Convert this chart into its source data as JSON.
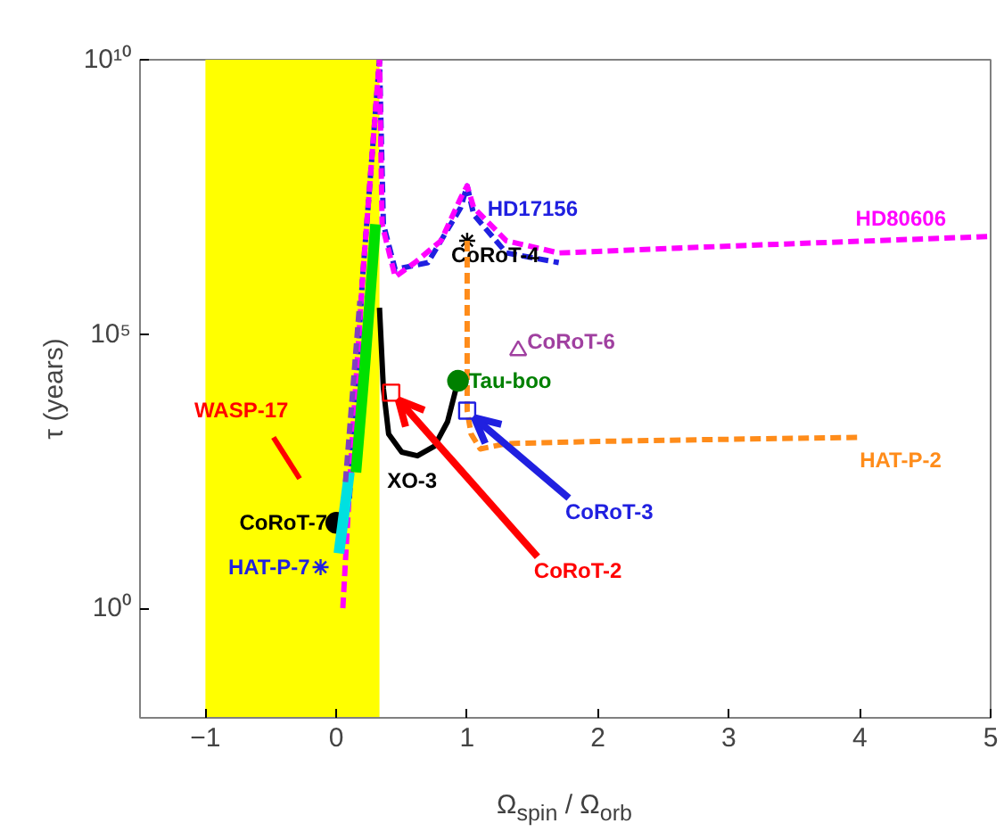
{
  "chart_data": {
    "type": "line",
    "xlabel": "Ω$_{spin}$ / Ω$_{orb}$",
    "ylabel": "τ (years)",
    "log": "y",
    "xlim": [
      -1.5,
      5
    ],
    "ylim": [
      0.01,
      10000000000
    ],
    "xticks": [
      {
        "value": -1,
        "label": "−1"
      },
      0,
      1,
      2,
      3,
      4,
      5
    ],
    "yticks": [
      {
        "value": 1,
        "label": "10⁰"
      },
      {
        "value": 100000,
        "label": "10⁵"
      },
      {
        "value": 10000000000,
        "label": "10¹⁰"
      }
    ],
    "grid": false,
    "bands": [
      {
        "axis": "x",
        "from": -1,
        "to": 0.33,
        "color": "#ffff00"
      }
    ],
    "series": [
      {
        "name": "HD17156",
        "color": "#2020e0",
        "line_style": "dashed",
        "x": [
          0.1,
          0.2,
          0.33,
          0.36,
          0.45,
          0.7,
          0.95,
          1.0,
          1.05,
          1.3,
          1.7
        ],
        "values": [
          100,
          1000000,
          10000000000,
          10000000,
          1500000,
          2000000,
          20000000,
          50000000,
          15000000,
          3000000,
          2000000
        ]
      },
      {
        "name": "HD80606",
        "color": "#ff00ff",
        "line_style": "dashed",
        "x": [
          0.05,
          0.12,
          0.2,
          0.33,
          0.35,
          0.45,
          0.6,
          0.8,
          0.95,
          1.0,
          1.05,
          1.3,
          1.7,
          3,
          5
        ],
        "values": [
          1,
          1000,
          1000000,
          10000000000,
          10000000,
          1100000,
          2000000,
          5000000,
          30000000,
          50000000,
          20000000,
          5000000,
          3000000,
          4000000,
          6000000
        ]
      },
      {
        "name": "CoRoT-4",
        "type": "scatter",
        "color": "#000000",
        "marker": "cross",
        "x": [
          1.0
        ],
        "values": [
          5000000
        ]
      },
      {
        "name": "HAT-P-2",
        "color": "#ff8c1a",
        "line_style": "dashed",
        "x": [
          1.0,
          1.0,
          1.0,
          1.03,
          1.1,
          1.3,
          2,
          3,
          4
        ],
        "values": [
          5000000,
          30000,
          4000,
          1500,
          800,
          1000,
          1100,
          1200,
          1300
        ]
      },
      {
        "name": "CoRoT-6",
        "type": "scatter",
        "color": "#a040a0",
        "marker": "triangle",
        "x": [
          1.39
        ],
        "values": [
          50000
        ]
      },
      {
        "name": "XO-3",
        "color": "#000000",
        "line_style": "solid",
        "x": [
          0.33,
          0.36,
          0.4,
          0.5,
          0.62,
          0.75,
          0.85,
          0.93
        ],
        "values": [
          300000,
          10000,
          1500,
          700,
          600,
          900,
          2500,
          14000
        ]
      },
      {
        "name": "Tau-boo",
        "type": "scatter",
        "color": "#008000",
        "marker": "circle",
        "x": [
          0.93
        ],
        "values": [
          14000
        ]
      },
      {
        "name": "CoRoT-3",
        "type": "scatter",
        "color": "#2020e0",
        "marker": "square",
        "x": [
          1.0
        ],
        "values": [
          4000
        ]
      },
      {
        "name": "CoRoT-2",
        "type": "scatter",
        "color": "#ff0000",
        "marker": "square",
        "x": [
          0.42
        ],
        "values": [
          8500
        ]
      },
      {
        "name": "WASP-17",
        "color": "#ff0000",
        "line_style": "solid",
        "x": [
          -0.48,
          -0.28
        ],
        "values": [
          1300,
          230
        ]
      },
      {
        "name": "CoRoT-7",
        "type": "scatter",
        "color": "#000000",
        "marker": "circle",
        "x": [
          0.0
        ],
        "values": [
          36
        ]
      },
      {
        "name": "HAT-P-7",
        "type": "scatter",
        "color": "#2020e0",
        "marker": "cross",
        "x": [
          -0.12
        ],
        "values": [
          5.6
        ]
      },
      {
        "color": "#00e000",
        "line_style": "solid",
        "x": [
          0.15,
          0.22,
          0.3
        ],
        "values": [
          300,
          30000,
          10000000
        ]
      },
      {
        "color": "#00e0e0",
        "line_style": "solid",
        "x": [
          0.02,
          0.1
        ],
        "values": [
          10,
          300
        ]
      },
      {
        "color": "#8040c0",
        "line_style": "dashed",
        "x": [
          0.07,
          0.18
        ],
        "values": [
          200,
          400000
        ]
      }
    ]
  }
}
